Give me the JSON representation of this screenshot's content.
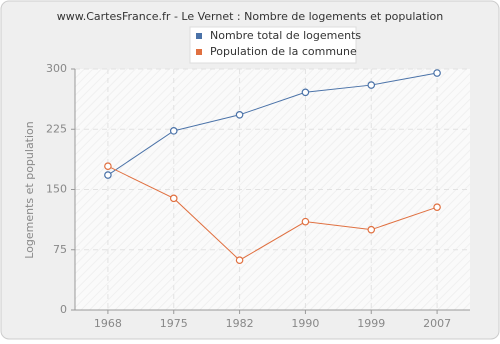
{
  "chart_data": {
    "type": "line",
    "title": "www.CartesFrance.fr - Le Vernet : Nombre de logements et population",
    "y_label": "Logements et population",
    "categories": [
      "1968",
      "1975",
      "1982",
      "1990",
      "1999",
      "2007"
    ],
    "series": [
      {
        "name": "Nombre total de logements",
        "color": "#4a72a8",
        "values": [
          168,
          223,
          243,
          271,
          280,
          295
        ]
      },
      {
        "name": "Population de la commune",
        "color": "#e07040",
        "values": [
          179,
          139,
          62,
          110,
          100,
          128
        ]
      }
    ],
    "ylim": [
      0,
      300
    ],
    "yticks": [
      0,
      75,
      150,
      225,
      300
    ],
    "grid": true,
    "legend": "top"
  }
}
